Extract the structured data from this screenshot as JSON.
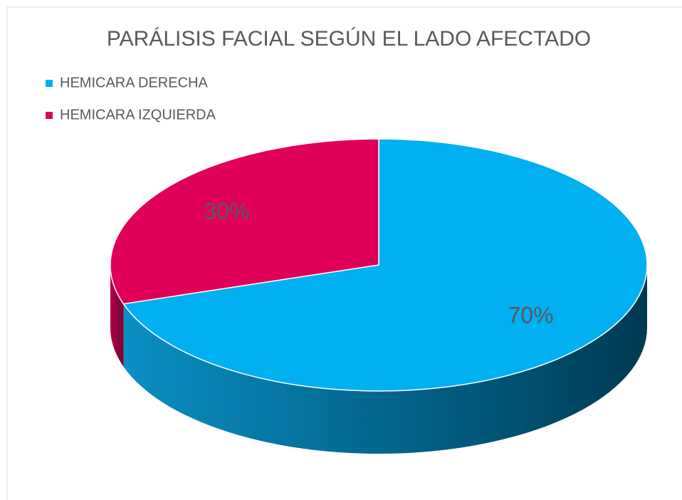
{
  "chart_data": {
    "type": "pie",
    "title": "PARÁLISIS FACIAL SEGÚN EL LADO AFECTADO",
    "categories": [
      "HEMICARA DERECHA",
      "HEMICARA IZQUIERDA"
    ],
    "values": [
      70,
      30
    ],
    "value_labels": [
      "70%",
      "30%"
    ],
    "colors": [
      "#00b0f0",
      "#e0005a"
    ],
    "legend": "top-left"
  }
}
